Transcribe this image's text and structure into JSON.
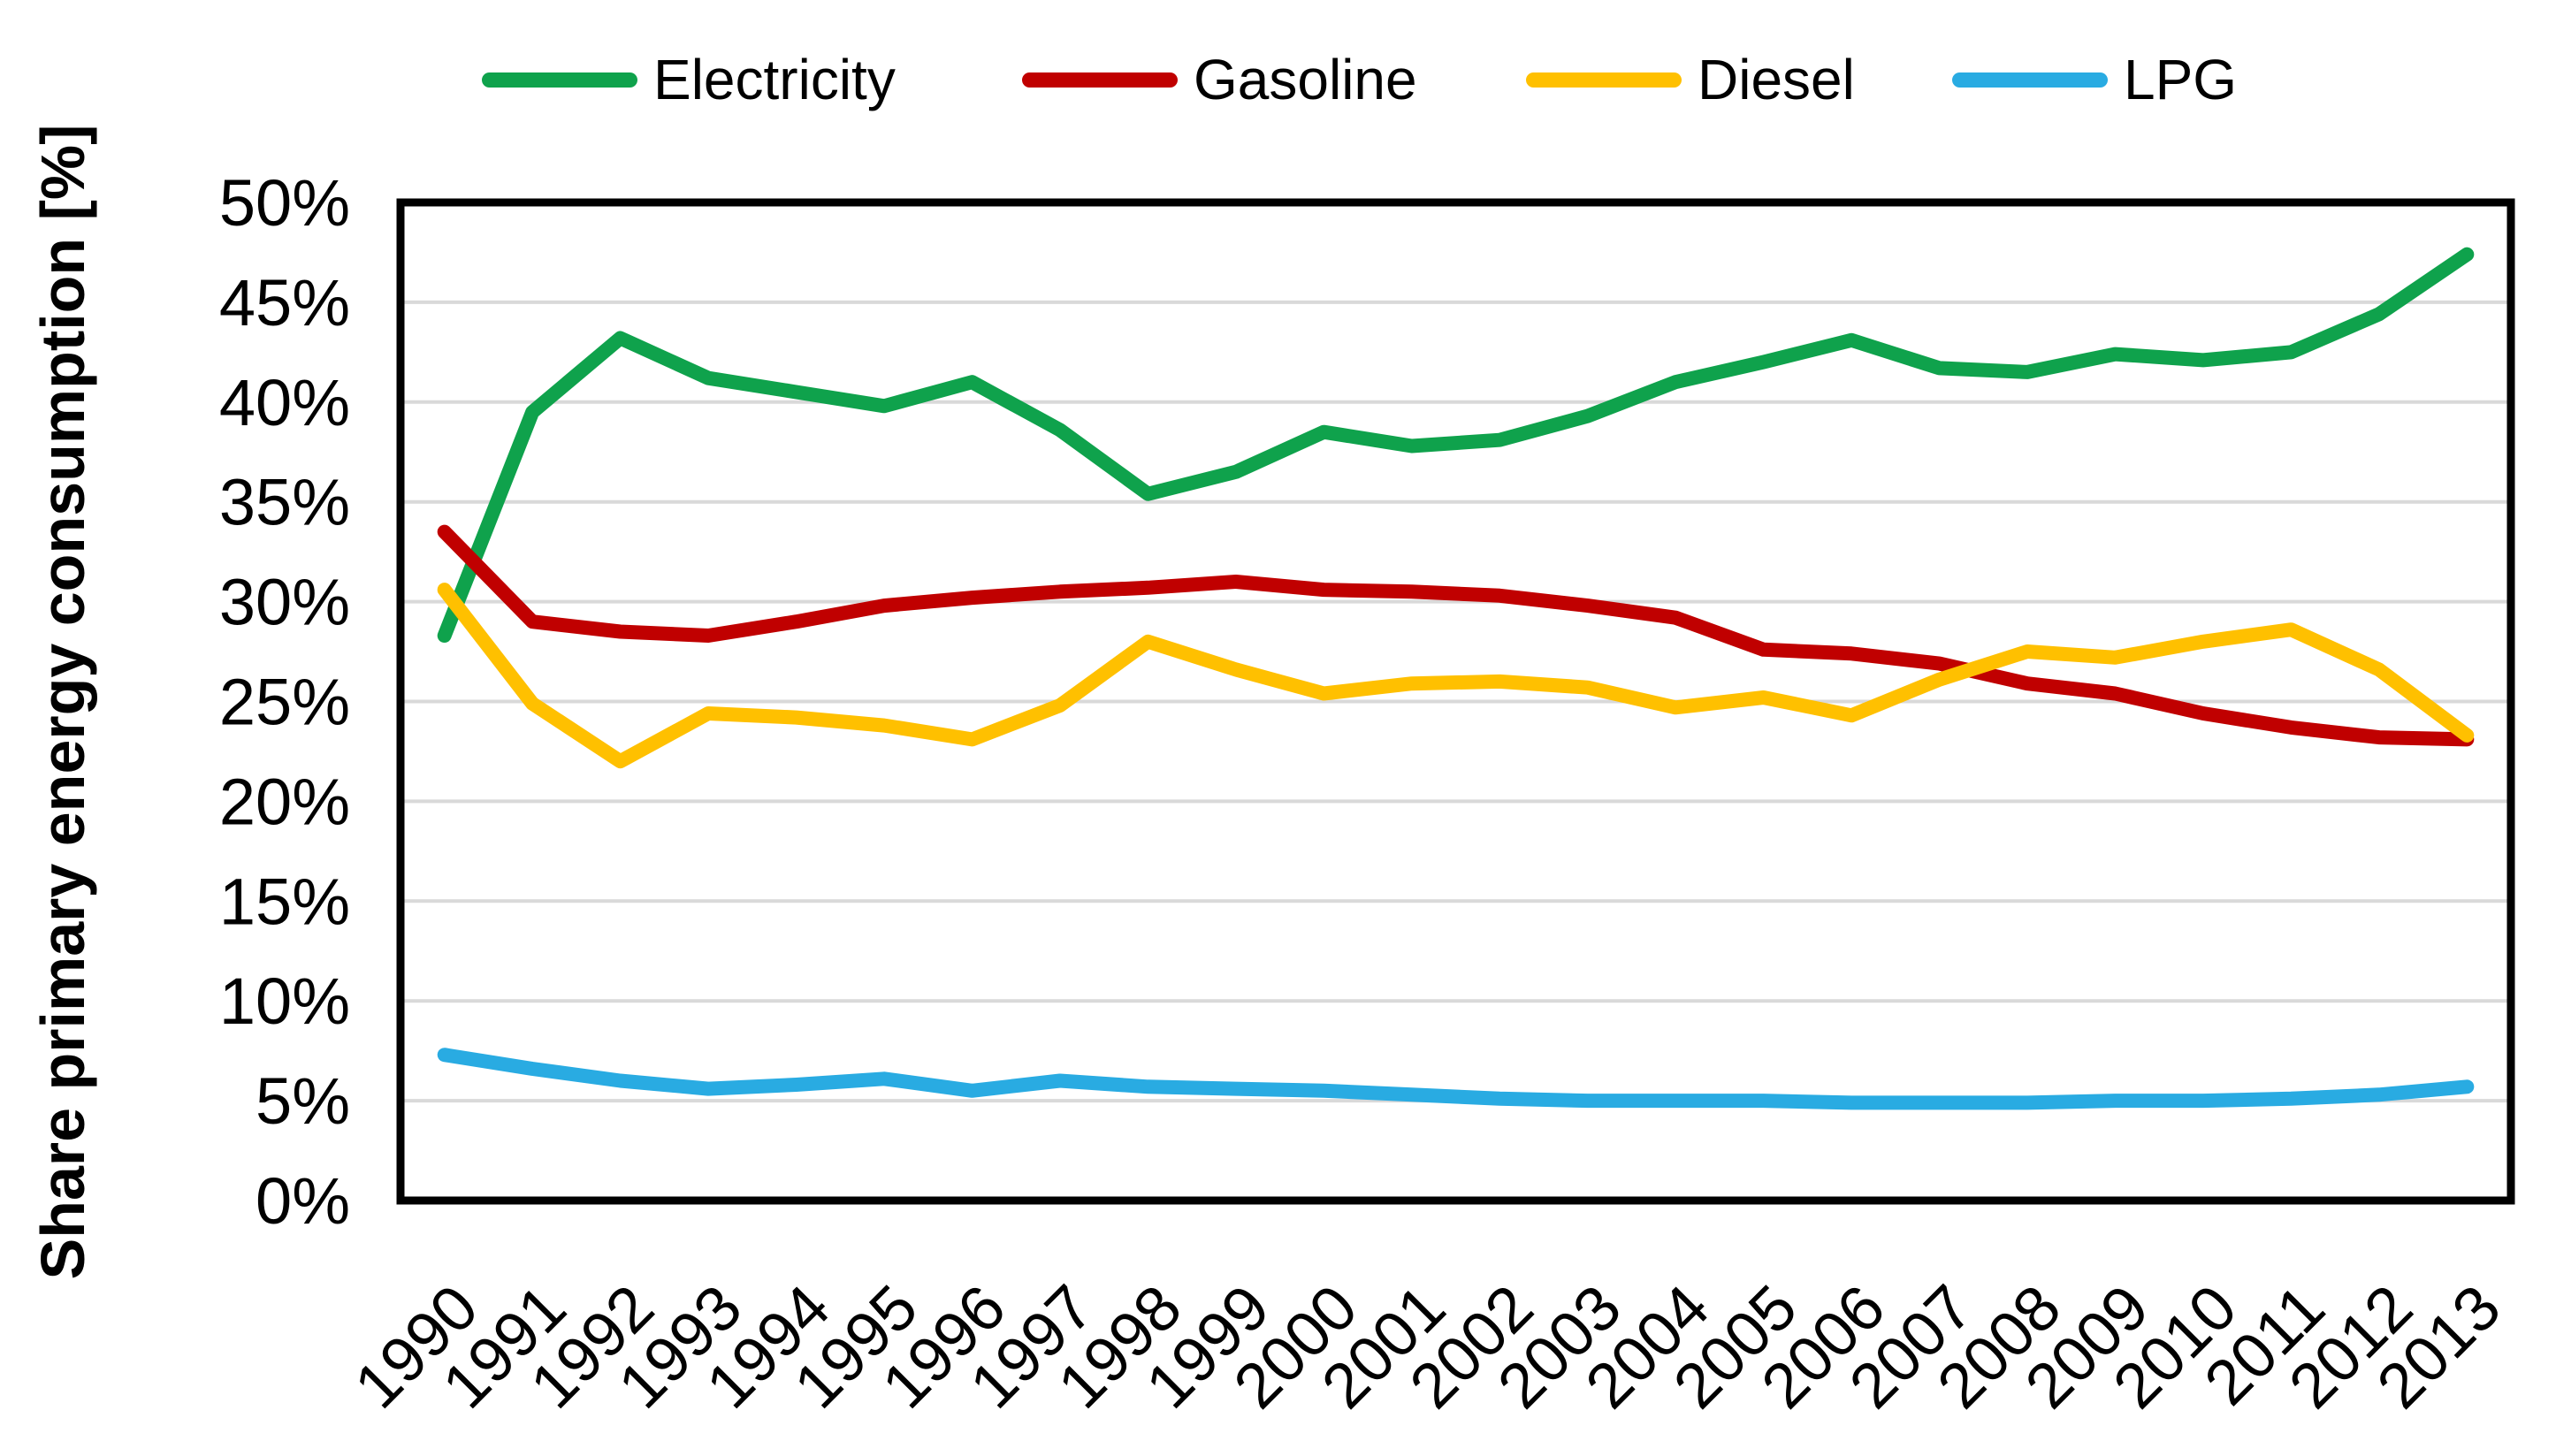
{
  "chart_data": {
    "type": "line",
    "title": "",
    "x_labels": [
      "1990",
      "1991",
      "1992",
      "1993",
      "1994",
      "1995",
      "1996",
      "1997",
      "1998",
      "1999",
      "2000",
      "2001",
      "2002",
      "2003",
      "2004",
      "2005",
      "2006",
      "2007",
      "2008",
      "2009",
      "2010",
      "2011",
      "2012",
      "2013"
    ],
    "series": [
      {
        "name": "Electricity",
        "color": "#0FA24C",
        "values": [
          28.3,
          39.5,
          43.2,
          41.2,
          40.5,
          39.8,
          41.0,
          38.6,
          35.4,
          36.5,
          38.5,
          37.8,
          38.1,
          39.3,
          41.0,
          42.0,
          43.1,
          41.7,
          41.5,
          42.4,
          42.1,
          42.5,
          44.4,
          47.4
        ]
      },
      {
        "name": "Gasoline",
        "color": "#C00000",
        "values": [
          33.5,
          29.0,
          28.5,
          28.3,
          29.0,
          29.8,
          30.2,
          30.5,
          30.7,
          31.0,
          30.6,
          30.5,
          30.3,
          29.8,
          29.2,
          27.6,
          27.4,
          26.9,
          25.9,
          25.4,
          24.4,
          23.7,
          23.2,
          23.1
        ]
      },
      {
        "name": "Diesel",
        "color": "#FFC000",
        "values": [
          30.6,
          24.9,
          22.0,
          24.4,
          24.2,
          23.8,
          23.1,
          24.8,
          28.0,
          26.6,
          25.4,
          25.9,
          26.0,
          25.7,
          24.7,
          25.2,
          24.3,
          26.1,
          27.5,
          27.2,
          28.0,
          28.6,
          26.6,
          23.3
        ]
      },
      {
        "name": "LPG",
        "color": "#29ABE2",
        "values": [
          7.3,
          6.6,
          6.0,
          5.6,
          5.8,
          6.1,
          5.5,
          6.0,
          5.7,
          5.6,
          5.5,
          5.3,
          5.1,
          5.0,
          5.0,
          5.0,
          4.9,
          4.9,
          4.9,
          5.0,
          5.0,
          5.1,
          5.3,
          5.7
        ]
      }
    ],
    "xlabel": "",
    "ylabel": "Share primary energy consumption [%]",
    "ylim": [
      0,
      50
    ],
    "y_tick_labels": [
      "0%",
      "5%",
      "10%",
      "15%",
      "20%",
      "25%",
      "30%",
      "35%",
      "40%",
      "45%",
      "50%"
    ],
    "grid": true,
    "legend_position": "top"
  },
  "legend": {
    "items": [
      {
        "label": "Electricity"
      },
      {
        "label": "Gasoline"
      },
      {
        "label": "Diesel"
      },
      {
        "label": "LPG"
      }
    ]
  },
  "style": {
    "background": "#FFFFFF",
    "grid_color": "#D9D9D9",
    "axis_color": "#000000",
    "text_color": "#000000"
  }
}
